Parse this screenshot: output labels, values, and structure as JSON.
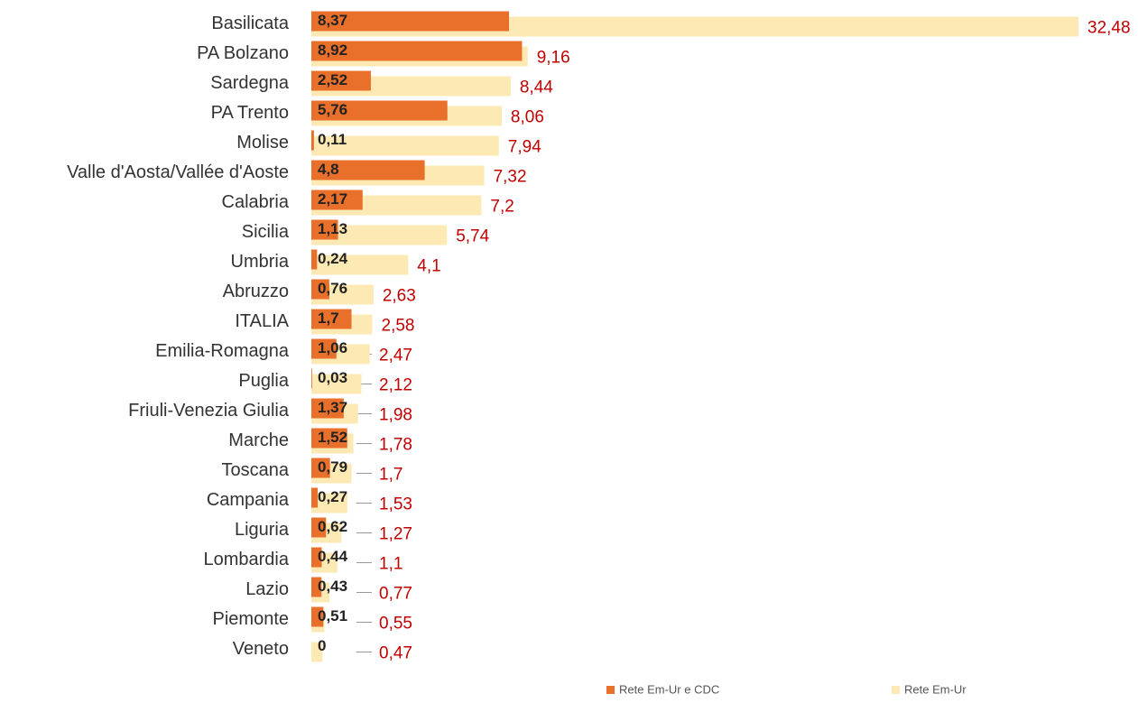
{
  "chart_data": {
    "type": "bar",
    "orientation": "horizontal",
    "categories": [
      "Basilicata",
      "PA Bolzano",
      "Sardegna",
      "PA Trento",
      "Molise",
      "Valle d'Aosta/Vallée d'Aoste",
      "Calabria",
      "Sicilia",
      "Umbria",
      "Abruzzo",
      "ITALIA",
      "Emilia-Romagna",
      "Puglia",
      "Friuli-Venezia Giulia",
      "Marche",
      "Toscana",
      "Campania",
      "Liguria",
      "Lombardia",
      "Lazio",
      "Piemonte",
      "Veneto"
    ],
    "series": [
      {
        "name": "Rete Em-Ur e CDC",
        "color": "#e8702a",
        "values": [
          8.37,
          8.92,
          2.52,
          5.76,
          0.11,
          4.8,
          2.17,
          1.13,
          0.24,
          0.76,
          1.7,
          1.06,
          0.03,
          1.37,
          1.52,
          0.79,
          0.27,
          0.62,
          0.44,
          0.43,
          0.51,
          0
        ],
        "value_labels": [
          "8,37",
          "8,92",
          "2,52",
          "5,76",
          "0,11",
          "4,8",
          "2,17",
          "1,13",
          "0,24",
          "0,76",
          "1,7",
          "1,06",
          "0,03",
          "1,37",
          "1,52",
          "0,79",
          "0,27",
          "0,62",
          "0,44",
          "0,43",
          "0,51",
          "0"
        ]
      },
      {
        "name": "Rete Em-Ur",
        "color": "#fde9b3",
        "values": [
          32.48,
          9.16,
          8.44,
          8.06,
          7.94,
          7.32,
          7.2,
          5.74,
          4.1,
          2.63,
          2.58,
          2.47,
          2.12,
          1.98,
          1.78,
          1.7,
          1.53,
          1.27,
          1.1,
          0.77,
          0.55,
          0.47
        ],
        "value_labels": [
          "32,48",
          "9,16",
          "8,44",
          "8,06",
          "7,94",
          "7,32",
          "7,2",
          "5,74",
          "4,1",
          "2,63",
          "2,58",
          "2,47",
          "2,12",
          "1,98",
          "1,78",
          "1,7",
          "1,53",
          "1,27",
          "1,1",
          "0,77",
          "0,55",
          "0,47"
        ]
      }
    ]
  }
}
